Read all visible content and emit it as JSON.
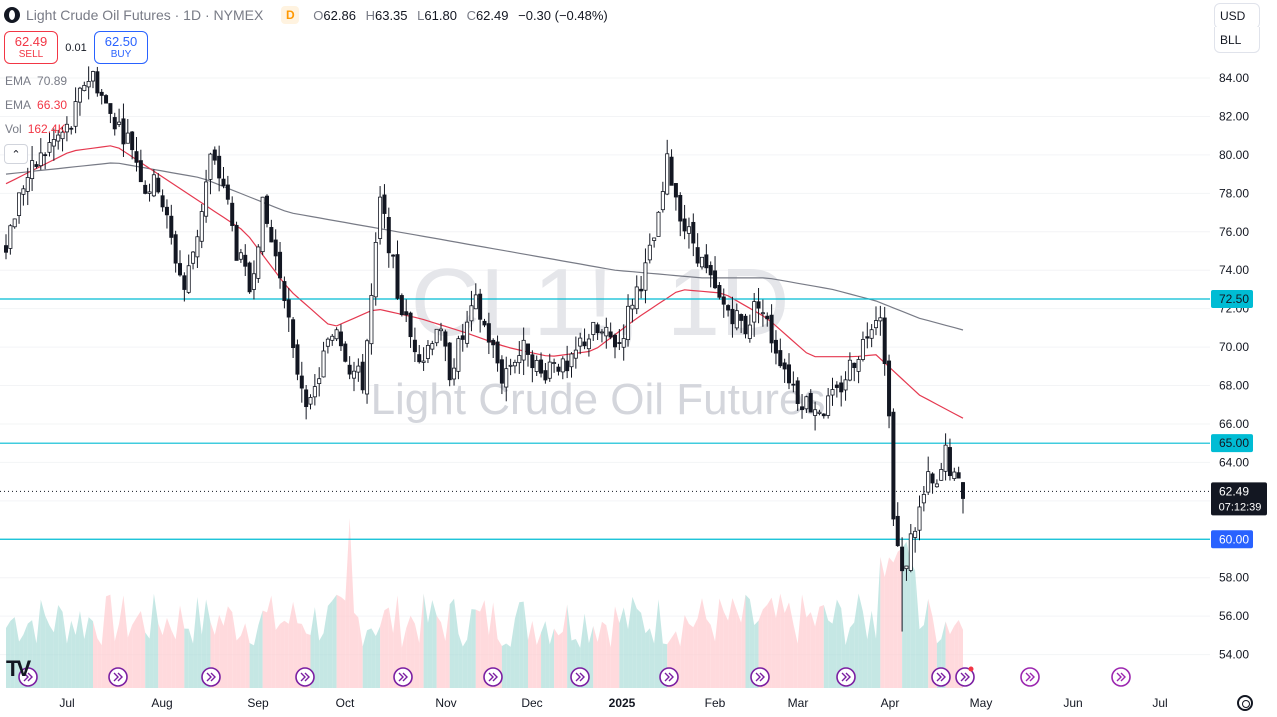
{
  "header": {
    "symbol_title": "Light Crude Oil Futures · 1D · NYMEX",
    "badge": "D",
    "ohlc": {
      "o_label": "O",
      "o": "62.86",
      "h_label": "H",
      "h": "63.35",
      "l_label": "L",
      "l": "61.80",
      "c_label": "C",
      "c": "62.49",
      "change": "−0.30 (−0.48%)"
    }
  },
  "trade": {
    "sell_price": "62.49",
    "sell_label": "SELL",
    "spread": "0.01",
    "buy_price": "62.50",
    "buy_label": "BUY"
  },
  "indicators": [
    {
      "name": "EMA",
      "value": "70.89",
      "color": "#787b86"
    },
    {
      "name": "EMA",
      "value": "66.30",
      "color": "#f23645"
    },
    {
      "name": "Vol",
      "value": "162.4K",
      "color": "#f23645"
    }
  ],
  "top_right": {
    "currency": "USD",
    "unit": "BLL"
  },
  "watermark": {
    "ticker": "CL1!, 1D",
    "name": "Light Crude Oil Futures"
  },
  "price_tag": {
    "price": "62.49",
    "countdown": "07:12:39"
  },
  "colors": {
    "up": "#26a69a",
    "down": "#f23645",
    "ema_slow": "#787b86",
    "ema_fast": "#e53950",
    "hline": "#00bcd4",
    "vol_up": "#b2dfdb",
    "vol_down": "#ffcdd2"
  },
  "icons": {
    "nav_marker": "double-chevron-right-icon",
    "tv_logo": "tradingview-logo-icon",
    "settings": "gear-icon"
  },
  "chart_data": {
    "type": "candlestick",
    "y_range": [
      53,
      86
    ],
    "y_ticks": [
      "84.00",
      "82.00",
      "80.00",
      "78.00",
      "76.00",
      "74.00",
      "72.00",
      "70.00",
      "68.00",
      "66.00",
      "64.00",
      "62.00",
      "60.00",
      "58.00",
      "56.00",
      "54.00"
    ],
    "x_ticks": [
      "Jul",
      "Aug",
      "Sep",
      "Oct",
      "Nov",
      "Dec",
      "2025",
      "Feb",
      "Mar",
      "Apr",
      "May",
      "Jun",
      "Jul"
    ],
    "horizontal_levels": [
      {
        "price": 72.5,
        "label": "72.50"
      },
      {
        "price": 65.0,
        "label": "65.00"
      },
      {
        "price": 60.0,
        "label": "60.00"
      }
    ],
    "last_price": 62.49,
    "close_path": [
      [
        0,
        75.5
      ],
      [
        4,
        78.5
      ],
      [
        10,
        80.5
      ],
      [
        15,
        81.5
      ],
      [
        18,
        83.8
      ],
      [
        20,
        84.2
      ],
      [
        23,
        82.5
      ],
      [
        26,
        81.5
      ],
      [
        29,
        80.5
      ],
      [
        32,
        78.3
      ],
      [
        35,
        78.5
      ],
      [
        38,
        75.5
      ],
      [
        41,
        73.0
      ],
      [
        44,
        76.0
      ],
      [
        47,
        79.8
      ],
      [
        50,
        78.5
      ],
      [
        53,
        75.0
      ],
      [
        56,
        73.0
      ],
      [
        59,
        77.2
      ],
      [
        61,
        75.5
      ],
      [
        64,
        73.0
      ],
      [
        66,
        69.5
      ],
      [
        69,
        67.5
      ],
      [
        70,
        66.8
      ],
      [
        73,
        69.5
      ],
      [
        76,
        71.2
      ],
      [
        79,
        69.0
      ],
      [
        82,
        68.2
      ],
      [
        84,
        72.5
      ],
      [
        86,
        77.5
      ],
      [
        88,
        75.5
      ],
      [
        90,
        72.8
      ],
      [
        93,
        70.5
      ],
      [
        96,
        69.5
      ],
      [
        99,
        71.2
      ],
      [
        102,
        68.8
      ],
      [
        105,
        70.5
      ],
      [
        108,
        72.2
      ],
      [
        111,
        70.5
      ],
      [
        114,
        68.5
      ],
      [
        117,
        69.5
      ],
      [
        120,
        70.0
      ],
      [
        123,
        68.5
      ],
      [
        126,
        69.5
      ],
      [
        129,
        68.5
      ],
      [
        132,
        70.2
      ],
      [
        135,
        70.8
      ],
      [
        138,
        70.5
      ],
      [
        141,
        70.2
      ],
      [
        144,
        72.5
      ],
      [
        147,
        74.0
      ],
      [
        150,
        76.5
      ],
      [
        152,
        79.5
      ],
      [
        154,
        78.0
      ],
      [
        156,
        76.2
      ],
      [
        158,
        75.5
      ],
      [
        161,
        73.8
      ],
      [
        164,
        72.3
      ],
      [
        167,
        71.8
      ],
      [
        170,
        71.0
      ],
      [
        173,
        72.5
      ],
      [
        176,
        70.5
      ],
      [
        179,
        69.0
      ],
      [
        182,
        67.5
      ],
      [
        185,
        67.0
      ],
      [
        188,
        66.8
      ],
      [
        191,
        67.5
      ],
      [
        194,
        69.0
      ],
      [
        197,
        70.2
      ],
      [
        199,
        71.5
      ],
      [
        201,
        72.0
      ],
      [
        202,
        69.0
      ],
      [
        203,
        67.0
      ],
      [
        204,
        61.0
      ],
      [
        205,
        59.5
      ],
      [
        206,
        58.0
      ],
      [
        208,
        60.0
      ],
      [
        210,
        61.5
      ],
      [
        212,
        63.0
      ],
      [
        214,
        62.5
      ],
      [
        216,
        64.5
      ],
      [
        218,
        63.0
      ],
      [
        220,
        62.49
      ]
    ],
    "ema_fast": [
      [
        0,
        78.5
      ],
      [
        15,
        80.2
      ],
      [
        25,
        80.5
      ],
      [
        35,
        79.0
      ],
      [
        45,
        77.5
      ],
      [
        55,
        76.0
      ],
      [
        65,
        73.0
      ],
      [
        75,
        71.0
      ],
      [
        85,
        72.0
      ],
      [
        95,
        71.5
      ],
      [
        105,
        70.8
      ],
      [
        115,
        70.0
      ],
      [
        125,
        69.5
      ],
      [
        135,
        69.8
      ],
      [
        145,
        71.5
      ],
      [
        155,
        73.0
      ],
      [
        165,
        72.8
      ],
      [
        175,
        71.5
      ],
      [
        185,
        69.5
      ],
      [
        195,
        69.5
      ],
      [
        200,
        69.6
      ],
      [
        210,
        67.5
      ],
      [
        220,
        66.3
      ]
    ],
    "ema_slow": [
      [
        0,
        79.0
      ],
      [
        25,
        79.6
      ],
      [
        45,
        78.8
      ],
      [
        65,
        77.0
      ],
      [
        90,
        76.0
      ],
      [
        115,
        75.0
      ],
      [
        140,
        74.0
      ],
      [
        160,
        73.6
      ],
      [
        175,
        73.6
      ],
      [
        190,
        73.0
      ],
      [
        200,
        72.4
      ],
      [
        210,
        71.5
      ],
      [
        220,
        70.89
      ]
    ],
    "event_markers": 11,
    "future_event_markers": 2
  }
}
